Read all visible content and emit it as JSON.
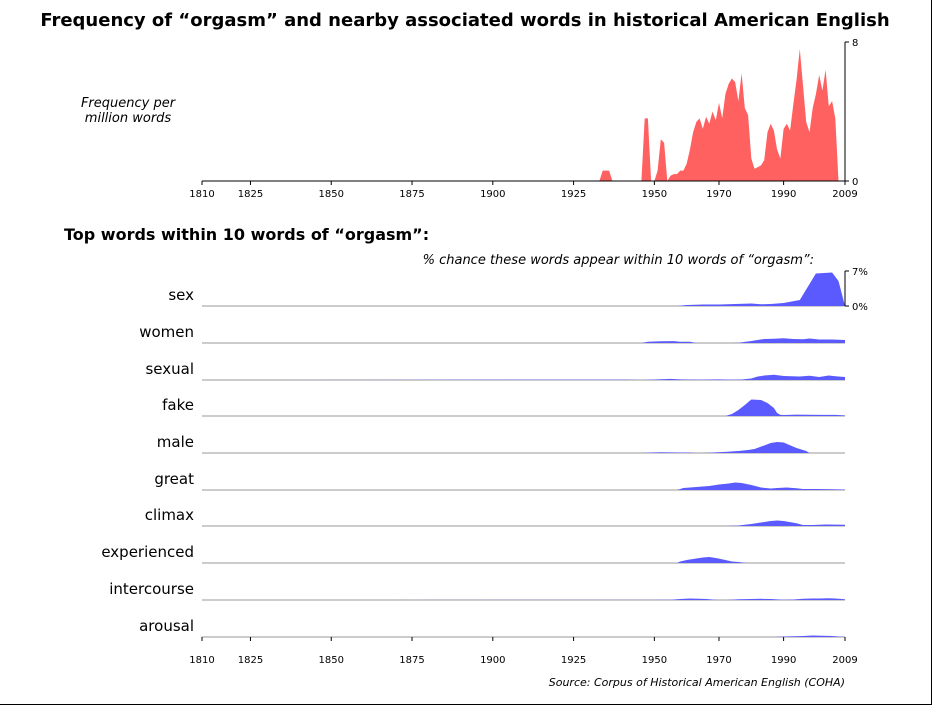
{
  "title": "Frequency of “orgasm” and nearby associated words in historical American English",
  "frequency_ylabel": "Frequency per million words",
  "section_title": "Top words within 10 words of “orgasm”:",
  "pct_caption": "% chance these words appear within 10 words of “orgasm”:",
  "source": "Source: Corpus of Historical American English (COHA)",
  "colors": {
    "frequency_fill": "#ff6060",
    "word_fill": "#5a5aff",
    "baseline": "#999999"
  },
  "chart_data": [
    {
      "type": "area",
      "title": "Frequency of “orgasm” and nearby associated words in historical American English",
      "ylabel": "Frequency per million words",
      "xlim": [
        1810,
        2009
      ],
      "ylim": [
        0,
        8
      ],
      "x_ticks": [
        "1810",
        "1825",
        "1850",
        "1875",
        "1900",
        "1925",
        "1950",
        "1970",
        "1990",
        "2009"
      ],
      "y_ticks": [
        "0",
        "8"
      ],
      "x": [
        1809,
        1933,
        1934,
        1936,
        1937,
        1946,
        1947,
        1948,
        1949,
        1950,
        1951,
        1952,
        1953,
        1954,
        1955,
        1956,
        1957,
        1958,
        1959,
        1960,
        1961,
        1962,
        1963,
        1964,
        1965,
        1966,
        1967,
        1968,
        1969,
        1970,
        1971,
        1972,
        1973,
        1974,
        1975,
        1976,
        1977,
        1978,
        1979,
        1980,
        1981,
        1982,
        1983,
        1984,
        1985,
        1986,
        1987,
        1988,
        1989,
        1990,
        1991,
        1992,
        1993,
        1994,
        1995,
        1996,
        1997,
        1998,
        1999,
        2000,
        2001,
        2002,
        2003,
        2004,
        2005,
        2006,
        2007,
        2008,
        2009
      ],
      "values": [
        0,
        0,
        0.6,
        0.6,
        0,
        0,
        3.6,
        3.6,
        0,
        0,
        0.6,
        2.4,
        2.2,
        0,
        0.3,
        0.4,
        0.4,
        0.6,
        0.6,
        1.0,
        1.8,
        2.8,
        3.4,
        3.6,
        3.0,
        3.7,
        3.3,
        4.0,
        3.5,
        4.5,
        3.6,
        5.0,
        5.6,
        5.9,
        5.7,
        4.6,
        6.2,
        4.2,
        3.8,
        1.3,
        0.7,
        0.8,
        0.9,
        1.2,
        2.8,
        3.3,
        2.9,
        1.8,
        1.3,
        3.0,
        3.3,
        2.9,
        4.4,
        5.8,
        7.6,
        5.5,
        3.4,
        2.8,
        4.2,
        5.0,
        6.1,
        5.2,
        6.4,
        4.3,
        4.6,
        3.6,
        0,
        0,
        0
      ],
      "grid": false
    },
    {
      "type": "area",
      "title": "Top words within 10 words of “orgasm”:",
      "caption": "% chance these words appear within 10 words of “orgasm”:",
      "xlim": [
        1810,
        2009
      ],
      "ylim": [
        0,
        7
      ],
      "x_ticks": [
        "1810",
        "1825",
        "1850",
        "1875",
        "1900",
        "1925",
        "1950",
        "1970",
        "1990",
        "2009"
      ],
      "y_ticks": [
        "0%",
        "7%"
      ],
      "grid": false,
      "series": [
        {
          "name": "sex",
          "x": [
            1810,
            1957,
            1960,
            1965,
            1970,
            1975,
            1980,
            1983,
            1986,
            1990,
            1995,
            2000,
            2005,
            2007,
            2009
          ],
          "values": [
            0,
            0,
            0.2,
            0.3,
            0.3,
            0.4,
            0.5,
            0.35,
            0.4,
            0.6,
            1.2,
            6.5,
            6.7,
            5.0,
            0
          ]
        },
        {
          "name": "women",
          "x": [
            1810,
            1946,
            1948,
            1952,
            1956,
            1958,
            1961,
            1963,
            1965,
            1970,
            1974,
            1976,
            1980,
            1984,
            1987,
            1990,
            1993,
            1996,
            1998,
            2001,
            2005,
            2009
          ],
          "values": [
            0,
            0,
            0.25,
            0.35,
            0.38,
            0.25,
            0.25,
            0,
            0,
            0,
            0,
            0.05,
            0.4,
            0.8,
            0.85,
            0.95,
            0.8,
            0.75,
            0.9,
            0.7,
            0.7,
            0.6
          ]
        },
        {
          "name": "sexual",
          "x": [
            1810,
            1930,
            1941,
            1946,
            1950,
            1955,
            1958,
            1961,
            1964,
            1966,
            1970,
            1974,
            1977,
            1980,
            1982,
            1984,
            1987,
            1990,
            1995,
            1998,
            2001,
            2004,
            2006,
            2009
          ],
          "values": [
            0,
            0.08,
            0.08,
            0,
            0.1,
            0.22,
            0.12,
            0.1,
            0.08,
            0.1,
            0.12,
            0.08,
            0.1,
            0.3,
            0.7,
            0.9,
            1.05,
            0.8,
            0.7,
            0.85,
            0.6,
            0.9,
            0.75,
            0.6
          ]
        },
        {
          "name": "fake",
          "x": [
            1810,
            1972,
            1974,
            1976,
            1978,
            1980,
            1983,
            1985,
            1987,
            1988,
            1989,
            1990,
            1994,
            1998,
            2002,
            2006,
            2009
          ],
          "values": [
            0,
            0,
            0.4,
            1.2,
            2.2,
            3.3,
            3.2,
            2.6,
            1.6,
            0.6,
            0.22,
            0.2,
            0.28,
            0.25,
            0.22,
            0.22,
            0.12
          ]
        },
        {
          "name": "male",
          "x": [
            1810,
            1946,
            1949,
            1952,
            1955,
            1958,
            1961,
            1963,
            1965,
            1968,
            1972,
            1976,
            1979,
            1981,
            1984,
            1986,
            1988,
            1990,
            1994,
            1997,
            1998,
            2009
          ],
          "values": [
            0,
            0,
            0.1,
            0.15,
            0.12,
            0.1,
            0.1,
            0,
            0,
            0.1,
            0.22,
            0.4,
            0.6,
            0.8,
            1.5,
            2.0,
            2.2,
            2.1,
            1.0,
            0.4,
            0,
            0
          ]
        },
        {
          "name": "great",
          "x": [
            1810,
            1957,
            1959,
            1963,
            1967,
            1970,
            1973,
            1975,
            1977,
            1980,
            1983,
            1986,
            1988,
            1991,
            1994,
            1996,
            2000,
            2005,
            2009
          ],
          "values": [
            0,
            0,
            0.4,
            0.6,
            0.8,
            1.1,
            1.3,
            1.5,
            1.4,
            1.0,
            0.5,
            0.3,
            0.4,
            0.5,
            0.35,
            0.2,
            0.2,
            0.15,
            0.1
          ]
        },
        {
          "name": "climax",
          "x": [
            1810,
            1972,
            1976,
            1980,
            1983,
            1986,
            1988,
            1990,
            1994,
            1996,
            1999,
            2003,
            2009
          ],
          "values": [
            0,
            0,
            0.1,
            0.4,
            0.7,
            1.0,
            1.1,
            1.0,
            0.55,
            0.2,
            0.2,
            0.3,
            0.25
          ]
        },
        {
          "name": "experienced",
          "x": [
            1810,
            1957,
            1958,
            1960,
            1962,
            1965,
            1967,
            1969,
            1972,
            1974,
            1976,
            1978,
            1979,
            2009
          ],
          "values": [
            0,
            0,
            0.3,
            0.6,
            0.8,
            1.1,
            1.2,
            1.0,
            0.6,
            0.3,
            0.2,
            0.05,
            0,
            0
          ]
        },
        {
          "name": "intercourse",
          "x": [
            1810,
            1950,
            1952,
            1955,
            1958,
            1961,
            1964,
            1966,
            1968,
            1970,
            1972,
            1976,
            1980,
            1983,
            1986,
            1990,
            1993,
            1996,
            1999,
            2001,
            2004,
            2006,
            2009
          ],
          "values": [
            0,
            0.02,
            0.05,
            0.05,
            0.2,
            0.3,
            0.25,
            0.2,
            0.1,
            0,
            0,
            0.15,
            0.2,
            0.25,
            0.2,
            0.05,
            0.1,
            0.25,
            0.3,
            0.3,
            0.35,
            0.3,
            0.15
          ]
        },
        {
          "name": "arousal",
          "x": [
            1810,
            1987,
            1990,
            1993,
            1996,
            1999,
            2002,
            2005,
            2007,
            2009
          ],
          "values": [
            0,
            0,
            0.1,
            0.15,
            0.2,
            0.3,
            0.25,
            0.2,
            0.1,
            0.05
          ]
        }
      ]
    }
  ]
}
